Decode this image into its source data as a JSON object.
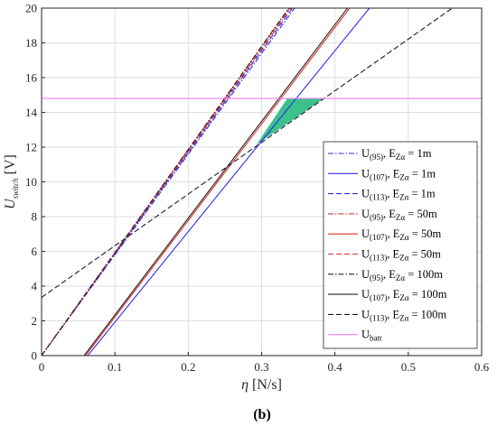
{
  "chart_data": {
    "type": "line",
    "caption": "(b)",
    "xlabel": {
      "symbol": "η",
      "unit": " [N/s]"
    },
    "ylabel": {
      "symbol": "U",
      "sub": "switch",
      "unit": " [V]"
    },
    "xlim": [
      0,
      0.6
    ],
    "ylim": [
      0,
      20
    ],
    "xticks": [
      "0",
      "0.1",
      "0.2",
      "0.3",
      "0.4",
      "0.5",
      "0.6"
    ],
    "yticks": [
      "0",
      "2",
      "4",
      "6",
      "8",
      "10",
      "12",
      "14",
      "16",
      "18",
      "20"
    ],
    "grid": true,
    "legend_position": "lower-right",
    "shaded_region": {
      "color": "#3cc18a",
      "points": [
        [
          0.293,
          12.15
        ],
        [
          0.335,
          14.8
        ],
        [
          0.385,
          14.8
        ]
      ]
    },
    "series": [
      {
        "name": "U",
        "sub1": "(95)",
        "mid": ", E",
        "sub2": "Zα",
        "eq": " = 1m",
        "color": "#2d2df2",
        "dash": "6,2,1.5,2",
        "x": [
          0.0,
          0.345
        ],
        "y": [
          0.0,
          20.0
        ]
      },
      {
        "name": "U",
        "sub1": "(107)",
        "mid": ", E",
        "sub2": "Zα",
        "eq": " = 1m",
        "color": "#2d2df2",
        "dash": "",
        "x": [
          0.063,
          0.447
        ],
        "y": [
          0.0,
          20.0
        ]
      },
      {
        "name": "U",
        "sub1": "(113)",
        "mid": ", E",
        "sub2": "Zα",
        "eq": " = 1m",
        "color": "#2d2df2",
        "dash": "6,3",
        "x": [
          0.0,
          0.342
        ],
        "y": [
          0.0,
          20.0
        ]
      },
      {
        "name": "U",
        "sub1": "(95)",
        "mid": ", E",
        "sub2": "Zα",
        "eq": " = 50m",
        "color": "#e0302a",
        "dash": "6,2,1.5,2",
        "x": [
          0.0,
          0.34
        ],
        "y": [
          0.0,
          20.0
        ]
      },
      {
        "name": "U",
        "sub1": "(107)",
        "mid": ", E",
        "sub2": "Zα",
        "eq": " = 50m",
        "color": "#e0302a",
        "dash": "",
        "x": [
          0.06,
          0.42
        ],
        "y": [
          0.0,
          20.0
        ]
      },
      {
        "name": "U",
        "sub1": "(113)",
        "mid": ", E",
        "sub2": "Zα",
        "eq": " = 50m",
        "color": "#e0302a",
        "dash": "6,3",
        "x": [
          0.0,
          0.338
        ],
        "y": [
          0.0,
          20.0
        ]
      },
      {
        "name": "U",
        "sub1": "(95)",
        "mid": ", E",
        "sub2": "Zα",
        "eq": " = 100m",
        "color": "#222222",
        "dash": "6,2,1.5,2",
        "x": [
          0.0,
          0.337
        ],
        "y": [
          0.0,
          20.0
        ]
      },
      {
        "name": "U",
        "sub1": "(107)",
        "mid": ", E",
        "sub2": "Zα",
        "eq": " = 100m",
        "color": "#222222",
        "dash": "",
        "x": [
          0.058,
          0.417
        ],
        "y": [
          0.0,
          20.0
        ]
      },
      {
        "name": "U",
        "sub1": "(113)",
        "mid": ", E",
        "sub2": "Zα",
        "eq": " = 100m",
        "color": "#1a1a3a",
        "dash": "6,3",
        "x": [
          0.0,
          0.56
        ],
        "y": [
          3.35,
          20.0
        ]
      },
      {
        "name": "U",
        "sub1": "batt",
        "mid": "",
        "sub2": "",
        "eq": "",
        "color": "#f07cf0",
        "dash": "",
        "x": [
          0.0,
          0.6
        ],
        "y": [
          14.8,
          14.8
        ]
      }
    ]
  }
}
